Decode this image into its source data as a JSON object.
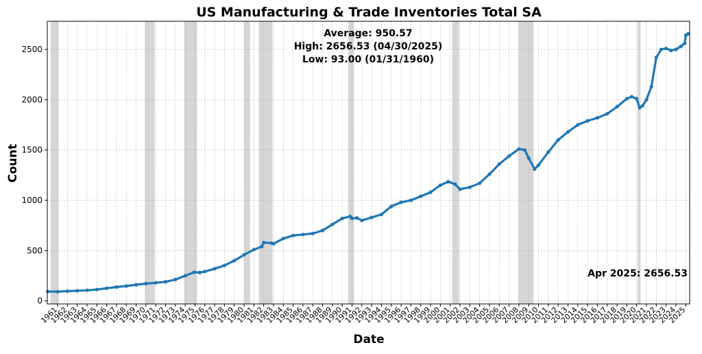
{
  "chart_data": {
    "type": "line",
    "title": "US Manufacturing & Trade Inventories Total SA",
    "xlabel": "Date",
    "ylabel": "Count",
    "xlim": [
      1959.95,
      2025.4
    ],
    "ylim": [
      -30,
      2780
    ],
    "grid": true,
    "yticks": [
      0,
      500,
      1000,
      1500,
      2000,
      2500
    ],
    "xticks": [
      "1961",
      "1962",
      "1963",
      "1964",
      "1965",
      "1966",
      "1967",
      "1968",
      "1969",
      "1970",
      "1971",
      "1972",
      "1973",
      "1974",
      "1975",
      "1976",
      "1977",
      "1978",
      "1979",
      "1980",
      "1981",
      "1982",
      "1983",
      "1984",
      "1985",
      "1986",
      "1987",
      "1988",
      "1989",
      "1990",
      "1991",
      "1992",
      "1993",
      "1994",
      "1995",
      "1996",
      "1997",
      "1998",
      "1999",
      "2000",
      "2001",
      "2002",
      "2003",
      "2004",
      "2005",
      "2006",
      "2007",
      "2008",
      "2009",
      "2010",
      "2011",
      "2012",
      "2013",
      "2014",
      "2015",
      "2016",
      "2017",
      "2018",
      "2019",
      "2020",
      "2021",
      "2022",
      "2023",
      "2024",
      "2025"
    ],
    "annotations": {
      "average": "Average: 950.57",
      "high": "High: 2656.53 (04/30/2025)",
      "low": "Low: 93.00 (01/31/1960)",
      "latest": "Apr 2025: 2656.53"
    },
    "recessions": [
      [
        1960.3,
        1961.1
      ],
      [
        1969.9,
        1970.9
      ],
      [
        1973.9,
        1975.2
      ],
      [
        1980.0,
        1980.6
      ],
      [
        1981.5,
        1982.9
      ],
      [
        1990.6,
        1991.2
      ],
      [
        2001.2,
        2001.9
      ],
      [
        2007.95,
        2009.5
      ],
      [
        2020.1,
        2020.4
      ]
    ],
    "series": [
      {
        "color": "#1f77b4",
        "x": [
          1960.0,
          1961.0,
          1962.0,
          1963.0,
          1964.0,
          1965.0,
          1966.0,
          1967.0,
          1968.0,
          1969.0,
          1970.0,
          1971.0,
          1972.0,
          1973.0,
          1974.0,
          1974.9,
          1975.5,
          1976.0,
          1977.0,
          1978.0,
          1979.0,
          1980.0,
          1981.0,
          1981.8,
          1982.0,
          1982.8,
          1983.0,
          1984.0,
          1985.0,
          1986.0,
          1987.0,
          1988.0,
          1989.0,
          1990.0,
          1990.8,
          1991.0,
          1991.5,
          1992.0,
          1993.0,
          1994.0,
          1995.0,
          1996.0,
          1997.0,
          1998.0,
          1999.0,
          2000.0,
          2000.8,
          2001.5,
          2002.0,
          2003.0,
          2004.0,
          2005.0,
          2006.0,
          2007.0,
          2008.0,
          2008.6,
          2009.0,
          2009.6,
          2010.0,
          2011.0,
          2012.0,
          2013.0,
          2014.0,
          2015.0,
          2016.0,
          2017.0,
          2018.0,
          2019.0,
          2019.5,
          2020.0,
          2020.3,
          2020.6,
          2021.0,
          2021.5,
          2022.0,
          2022.5,
          2023.0,
          2023.5,
          2024.0,
          2024.5,
          2024.9,
          2025.0,
          2025.25
        ],
        "y": [
          93,
          92,
          97,
          101,
          105,
          113,
          126,
          138,
          148,
          160,
          172,
          180,
          190,
          212,
          250,
          285,
          282,
          292,
          320,
          352,
          400,
          458,
          510,
          540,
          580,
          575,
          568,
          620,
          650,
          660,
          670,
          700,
          760,
          820,
          840,
          820,
          825,
          800,
          830,
          860,
          940,
          980,
          1000,
          1040,
          1080,
          1150,
          1185,
          1160,
          1110,
          1130,
          1170,
          1260,
          1360,
          1440,
          1510,
          1500,
          1420,
          1310,
          1350,
          1480,
          1600,
          1680,
          1750,
          1790,
          1820,
          1860,
          1930,
          2010,
          2030,
          2010,
          1920,
          1940,
          2000,
          2130,
          2420,
          2500,
          2510,
          2490,
          2500,
          2530,
          2560,
          2640,
          2656.53
        ]
      }
    ]
  }
}
